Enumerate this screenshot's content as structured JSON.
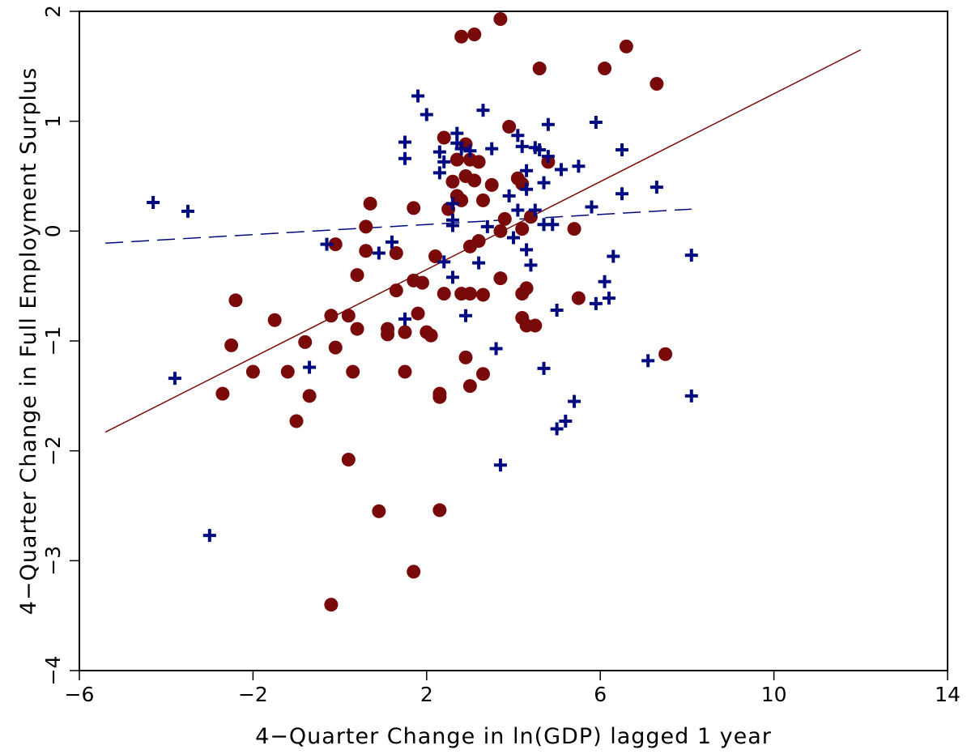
{
  "chart_data": {
    "type": "scatter",
    "xlabel": "4−Quarter Change in ln(GDP) lagged 1 year",
    "ylabel": "4−Quarter Change in Full Employment Surplus",
    "xlim": [
      -6,
      14
    ],
    "ylim": [
      -4,
      2
    ],
    "x_ticks": [
      -6,
      -2,
      2,
      6,
      10,
      14
    ],
    "x_tick_labels": [
      "−6",
      "−2",
      "2",
      "6",
      "10",
      "14"
    ],
    "y_ticks": [
      -4,
      -3,
      -2,
      -1,
      0,
      1,
      2
    ],
    "y_tick_labels": [
      "−4",
      "−3",
      "−2",
      "−1",
      "0",
      "1",
      "2"
    ],
    "grid": false,
    "series": [
      {
        "marker": "circle",
        "color": "#7a0a0a",
        "points": [
          [
            2.8,
            1.77
          ],
          [
            3.1,
            1.79
          ],
          [
            3.7,
            1.93
          ],
          [
            4.6,
            1.48
          ],
          [
            6.1,
            1.48
          ],
          [
            6.6,
            1.68
          ],
          [
            7.3,
            1.34
          ],
          [
            2.4,
            0.85
          ],
          [
            3.9,
            0.95
          ],
          [
            2.9,
            0.79
          ],
          [
            2.7,
            0.65
          ],
          [
            3.0,
            0.65
          ],
          [
            3.2,
            0.63
          ],
          [
            4.8,
            0.63
          ],
          [
            2.9,
            0.5
          ],
          [
            3.1,
            0.46
          ],
          [
            2.6,
            0.45
          ],
          [
            4.1,
            0.48
          ],
          [
            4.2,
            0.43
          ],
          [
            3.5,
            0.42
          ],
          [
            2.7,
            0.32
          ],
          [
            2.8,
            0.28
          ],
          [
            3.3,
            0.28
          ],
          [
            2.5,
            0.2
          ],
          [
            1.7,
            0.21
          ],
          [
            0.7,
            0.25
          ],
          [
            0.6,
            0.04
          ],
          [
            3.8,
            0.11
          ],
          [
            4.4,
            0.13
          ],
          [
            5.4,
            0.02
          ],
          [
            3.7,
            0.0
          ],
          [
            4.2,
            0.02
          ],
          [
            3.2,
            -0.09
          ],
          [
            3.0,
            -0.14
          ],
          [
            -0.1,
            -0.12
          ],
          [
            0.6,
            -0.18
          ],
          [
            1.3,
            -0.2
          ],
          [
            0.4,
            -0.4
          ],
          [
            2.2,
            -0.23
          ],
          [
            1.7,
            -0.45
          ],
          [
            1.9,
            -0.47
          ],
          [
            1.3,
            -0.54
          ],
          [
            2.4,
            -0.57
          ],
          [
            2.8,
            -0.57
          ],
          [
            3.0,
            -0.57
          ],
          [
            3.3,
            -0.58
          ],
          [
            3.7,
            -0.43
          ],
          [
            4.3,
            -0.52
          ],
          [
            4.2,
            -0.57
          ],
          [
            5.5,
            -0.61
          ],
          [
            -2.4,
            -0.63
          ],
          [
            -1.5,
            -0.81
          ],
          [
            -0.2,
            -0.77
          ],
          [
            0.2,
            -0.77
          ],
          [
            1.8,
            -0.75
          ],
          [
            4.2,
            -0.79
          ],
          [
            4.3,
            -0.86
          ],
          [
            4.5,
            -0.86
          ],
          [
            0.4,
            -0.89
          ],
          [
            1.1,
            -0.89
          ],
          [
            1.1,
            -0.94
          ],
          [
            1.5,
            -0.92
          ],
          [
            2.0,
            -0.92
          ],
          [
            2.1,
            -0.95
          ],
          [
            7.5,
            -1.12
          ],
          [
            -2.5,
            -1.04
          ],
          [
            -0.1,
            -1.06
          ],
          [
            -0.8,
            -1.01
          ],
          [
            -2.0,
            -1.28
          ],
          [
            -1.2,
            -1.28
          ],
          [
            0.3,
            -1.28
          ],
          [
            1.5,
            -1.28
          ],
          [
            2.9,
            -1.15
          ],
          [
            3.3,
            -1.3
          ],
          [
            -2.7,
            -1.48
          ],
          [
            -0.7,
            -1.5
          ],
          [
            2.3,
            -1.48
          ],
          [
            2.3,
            -1.51
          ],
          [
            3.0,
            -1.41
          ],
          [
            -1.0,
            -1.73
          ],
          [
            0.2,
            -2.08
          ],
          [
            0.9,
            -2.55
          ],
          [
            2.3,
            -2.54
          ],
          [
            1.7,
            -3.1
          ],
          [
            -0.2,
            -3.4
          ]
        ]
      },
      {
        "marker": "plus",
        "color": "#000a80",
        "points": [
          [
            -4.3,
            0.26
          ],
          [
            -3.5,
            0.18
          ],
          [
            1.8,
            1.23
          ],
          [
            2.0,
            1.06
          ],
          [
            3.3,
            1.1
          ],
          [
            4.8,
            0.97
          ],
          [
            5.9,
            0.99
          ],
          [
            1.5,
            0.81
          ],
          [
            1.5,
            0.66
          ],
          [
            2.7,
            0.89
          ],
          [
            2.7,
            0.8
          ],
          [
            2.8,
            0.75
          ],
          [
            3.0,
            0.73
          ],
          [
            3.5,
            0.75
          ],
          [
            2.3,
            0.72
          ],
          [
            4.1,
            0.87
          ],
          [
            4.2,
            0.77
          ],
          [
            4.5,
            0.76
          ],
          [
            4.6,
            0.74
          ],
          [
            4.8,
            0.68
          ],
          [
            6.5,
            0.74
          ],
          [
            2.4,
            0.63
          ],
          [
            2.3,
            0.53
          ],
          [
            5.1,
            0.56
          ],
          [
            5.5,
            0.59
          ],
          [
            4.3,
            0.55
          ],
          [
            4.7,
            0.44
          ],
          [
            4.3,
            0.38
          ],
          [
            3.9,
            0.32
          ],
          [
            6.5,
            0.34
          ],
          [
            7.3,
            0.4
          ],
          [
            2.6,
            0.25
          ],
          [
            2.6,
            0.1
          ],
          [
            2.6,
            0.05
          ],
          [
            4.1,
            0.19
          ],
          [
            4.5,
            0.19
          ],
          [
            5.8,
            0.22
          ],
          [
            3.4,
            0.04
          ],
          [
            4.7,
            0.06
          ],
          [
            4.9,
            0.06
          ],
          [
            4.0,
            -0.06
          ],
          [
            -0.3,
            -0.12
          ],
          [
            0.9,
            -0.2
          ],
          [
            1.2,
            -0.1
          ],
          [
            4.3,
            -0.17
          ],
          [
            4.4,
            -0.31
          ],
          [
            6.3,
            -0.23
          ],
          [
            8.1,
            -0.22
          ],
          [
            2.4,
            -0.28
          ],
          [
            3.2,
            -0.29
          ],
          [
            2.6,
            -0.42
          ],
          [
            6.1,
            -0.46
          ],
          [
            5.9,
            -0.66
          ],
          [
            6.2,
            -0.61
          ],
          [
            5.0,
            -0.72
          ],
          [
            2.9,
            -0.77
          ],
          [
            1.5,
            -0.8
          ],
          [
            3.6,
            -1.07
          ],
          [
            -0.7,
            -1.24
          ],
          [
            -3.8,
            -1.34
          ],
          [
            4.7,
            -1.25
          ],
          [
            7.1,
            -1.18
          ],
          [
            8.1,
            -1.5
          ],
          [
            5.4,
            -1.55
          ],
          [
            5.2,
            -1.73
          ],
          [
            5.0,
            -1.8
          ],
          [
            3.7,
            -2.13
          ],
          [
            -3.0,
            -2.77
          ]
        ]
      }
    ],
    "fit_lines": [
      {
        "style": "solid",
        "color": "#7a0a0a",
        "x": [
          -5.4,
          12.0
        ],
        "y": [
          -1.83,
          1.65
        ]
      },
      {
        "style": "dashed",
        "color": "#000a80",
        "x": [
          -5.4,
          8.1
        ],
        "y": [
          -0.11,
          0.2
        ]
      }
    ]
  }
}
